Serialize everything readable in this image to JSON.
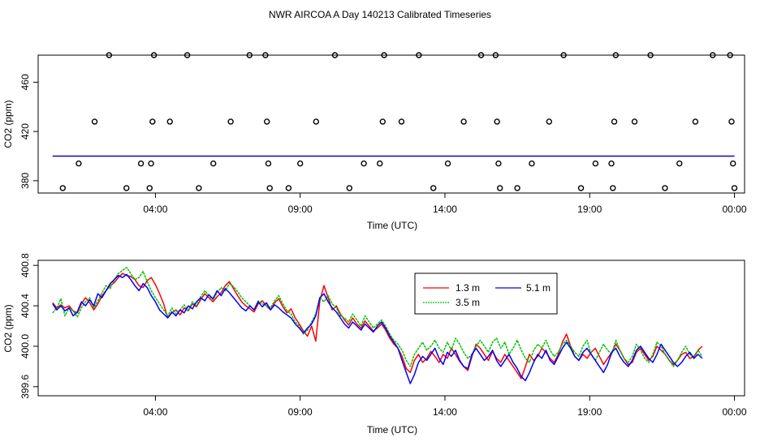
{
  "figure": {
    "title": "NWR AIRCOA A  Day 140213  Calibrated Timeseries"
  },
  "chart_data": [
    {
      "type": "scatter",
      "title": "NWR AIRCOA A  Day 140213  Calibrated Timeseries",
      "xlabel": "Time (UTC)",
      "ylabel": "CO2 (ppm)",
      "x_unit": "hours_utc",
      "xlim": [
        -0.05,
        24.35
      ],
      "ylim": [
        370,
        482
      ],
      "x_ticks": [
        {
          "value": 4,
          "label": "04:00"
        },
        {
          "value": 9,
          "label": "09:00"
        },
        {
          "value": 14,
          "label": "14:00"
        },
        {
          "value": 19,
          "label": "19:00"
        },
        {
          "value": 24,
          "label": "00:00"
        }
      ],
      "y_ticks": [
        {
          "value": 380,
          "label": "380"
        },
        {
          "value": 420,
          "label": "420"
        },
        {
          "value": 460,
          "label": "460"
        }
      ],
      "grid": false,
      "lines": [
        {
          "name": "1.3 m",
          "color": "#ff0000",
          "x": [
            0.45,
            24.0
          ],
          "y": [
            400.0,
            400.0
          ]
        },
        {
          "name": "3.5 m",
          "color": "#00c000",
          "x": [
            0.45,
            24.0
          ],
          "y": [
            400.0,
            400.0
          ]
        },
        {
          "name": "5.1 m",
          "color": "#0000ff",
          "x": [
            0.45,
            24.0
          ],
          "y": [
            400.0,
            400.0
          ]
        }
      ],
      "points": [
        {
          "x": 0.8,
          "y": 374
        },
        {
          "x": 1.35,
          "y": 394
        },
        {
          "x": 1.9,
          "y": 428
        },
        {
          "x": 2.4,
          "y": 482
        },
        {
          "x": 3.0,
          "y": 374
        },
        {
          "x": 3.5,
          "y": 394
        },
        {
          "x": 3.8,
          "y": 374
        },
        {
          "x": 3.85,
          "y": 394
        },
        {
          "x": 3.9,
          "y": 428
        },
        {
          "x": 3.95,
          "y": 482
        },
        {
          "x": 4.5,
          "y": 428
        },
        {
          "x": 5.1,
          "y": 482
        },
        {
          "x": 5.5,
          "y": 374
        },
        {
          "x": 6.0,
          "y": 394
        },
        {
          "x": 6.6,
          "y": 428
        },
        {
          "x": 7.25,
          "y": 482
        },
        {
          "x": 7.8,
          "y": 482
        },
        {
          "x": 7.85,
          "y": 428
        },
        {
          "x": 7.9,
          "y": 394
        },
        {
          "x": 7.95,
          "y": 374
        },
        {
          "x": 8.6,
          "y": 374
        },
        {
          "x": 9.0,
          "y": 394
        },
        {
          "x": 9.55,
          "y": 428
        },
        {
          "x": 10.2,
          "y": 482
        },
        {
          "x": 10.7,
          "y": 374
        },
        {
          "x": 11.2,
          "y": 394
        },
        {
          "x": 11.75,
          "y": 394
        },
        {
          "x": 11.85,
          "y": 428
        },
        {
          "x": 11.9,
          "y": 482
        },
        {
          "x": 12.5,
          "y": 428
        },
        {
          "x": 13.1,
          "y": 482
        },
        {
          "x": 13.6,
          "y": 374
        },
        {
          "x": 14.1,
          "y": 394
        },
        {
          "x": 14.65,
          "y": 428
        },
        {
          "x": 15.25,
          "y": 482
        },
        {
          "x": 15.75,
          "y": 482
        },
        {
          "x": 15.8,
          "y": 428
        },
        {
          "x": 15.85,
          "y": 394
        },
        {
          "x": 15.9,
          "y": 374
        },
        {
          "x": 16.5,
          "y": 374
        },
        {
          "x": 17.0,
          "y": 394
        },
        {
          "x": 17.6,
          "y": 428
        },
        {
          "x": 18.1,
          "y": 482
        },
        {
          "x": 18.7,
          "y": 374
        },
        {
          "x": 19.2,
          "y": 394
        },
        {
          "x": 19.75,
          "y": 394
        },
        {
          "x": 19.8,
          "y": 374
        },
        {
          "x": 19.85,
          "y": 428
        },
        {
          "x": 19.9,
          "y": 482
        },
        {
          "x": 20.55,
          "y": 428
        },
        {
          "x": 21.1,
          "y": 482
        },
        {
          "x": 21.6,
          "y": 374
        },
        {
          "x": 22.1,
          "y": 394
        },
        {
          "x": 22.65,
          "y": 428
        },
        {
          "x": 23.25,
          "y": 482
        },
        {
          "x": 23.85,
          "y": 482
        },
        {
          "x": 23.9,
          "y": 428
        },
        {
          "x": 23.95,
          "y": 394
        },
        {
          "x": 24.0,
          "y": 374
        }
      ]
    },
    {
      "type": "line",
      "xlabel": "Time (UTC)",
      "ylabel": "CO2 (ppm)",
      "x_unit": "hours_utc",
      "xlim": [
        -0.05,
        24.35
      ],
      "ylim": [
        399.51,
        400.85
      ],
      "x_ticks": [
        {
          "value": 4,
          "label": "04:00"
        },
        {
          "value": 9,
          "label": "09:00"
        },
        {
          "value": 14,
          "label": "14:00"
        },
        {
          "value": 19,
          "label": "19:00"
        },
        {
          "value": 24,
          "label": "00:00"
        }
      ],
      "y_ticks": [
        {
          "value": 399.6,
          "label": "399.6"
        },
        {
          "value": 400.0,
          "label": "400.0"
        },
        {
          "value": 400.4,
          "label": "400.4"
        },
        {
          "value": 400.8,
          "label": "400.8"
        }
      ],
      "grid": false,
      "legend": {
        "placement": "top-center",
        "columns": 2
      },
      "x_start": 0.45,
      "x_step": 0.142,
      "series": [
        {
          "name": "1.3 m",
          "color": "#ff0000",
          "values": [
            400.43,
            400.38,
            400.41,
            400.38,
            400.4,
            400.35,
            400.33,
            400.42,
            400.48,
            400.43,
            400.36,
            400.42,
            400.5,
            400.55,
            400.6,
            400.63,
            400.68,
            400.72,
            400.7,
            400.69,
            400.66,
            400.6,
            400.58,
            400.65,
            400.68,
            400.61,
            400.52,
            400.42,
            400.28,
            400.33,
            400.36,
            400.31,
            400.38,
            400.35,
            400.42,
            400.39,
            400.46,
            400.52,
            400.48,
            400.44,
            400.49,
            400.53,
            400.6,
            400.64,
            400.57,
            400.5,
            400.44,
            400.4,
            400.37,
            400.34,
            400.42,
            400.45,
            400.4,
            400.36,
            400.43,
            400.47,
            400.39,
            400.33,
            400.37,
            400.28,
            400.22,
            400.15,
            400.1,
            400.2,
            400.05,
            400.45,
            400.6,
            400.48,
            400.36,
            400.4,
            400.32,
            400.26,
            400.21,
            400.28,
            400.22,
            400.18,
            400.25,
            400.2,
            400.15,
            400.18,
            400.22,
            400.16,
            400.08,
            400.02,
            399.98,
            399.9,
            399.78,
            399.74,
            399.86,
            399.92,
            399.84,
            399.88,
            399.95,
            399.9,
            399.84,
            399.92,
            399.88,
            399.98,
            399.92,
            399.85,
            399.8,
            399.76,
            399.9,
            400.02,
            399.98,
            399.92,
            399.86,
            399.95,
            399.88,
            399.84,
            399.92,
            399.86,
            399.8,
            399.74,
            399.68,
            399.8,
            399.92,
            399.86,
            399.9,
            399.98,
            399.94,
            399.88,
            399.84,
            399.92,
            400.04,
            400.12,
            400.0,
            399.9,
            399.86,
            399.92,
            399.88,
            399.94,
            399.98,
            399.9,
            399.82,
            399.88,
            399.94,
            400.02,
            399.96,
            399.88,
            399.82,
            399.84,
            399.94,
            399.98,
            399.92,
            399.86,
            399.9,
            400.0,
            399.96,
            399.92,
            399.86,
            399.82,
            399.86,
            399.92,
            399.94,
            399.88,
            399.9,
            399.96,
            400.0
          ]
        },
        {
          "name": "3.5 m",
          "color": "#00c000",
          "values": [
            400.33,
            400.38,
            400.47,
            400.3,
            400.38,
            400.35,
            400.29,
            400.38,
            400.44,
            400.48,
            400.38,
            400.45,
            400.53,
            400.6,
            400.57,
            400.66,
            400.72,
            400.75,
            400.78,
            400.72,
            400.66,
            400.68,
            400.74,
            400.64,
            400.55,
            400.48,
            400.42,
            400.36,
            400.3,
            400.38,
            400.32,
            400.36,
            400.41,
            400.35,
            400.44,
            400.4,
            400.49,
            400.55,
            400.5,
            400.46,
            400.53,
            400.58,
            400.55,
            400.62,
            400.59,
            400.54,
            400.48,
            400.44,
            400.4,
            400.36,
            400.45,
            400.42,
            400.4,
            400.38,
            400.45,
            400.5,
            400.42,
            400.35,
            400.32,
            400.24,
            400.2,
            400.12,
            400.16,
            400.24,
            400.32,
            400.48,
            400.44,
            400.5,
            400.42,
            400.38,
            400.3,
            400.28,
            400.24,
            400.32,
            400.26,
            400.2,
            400.3,
            400.24,
            400.18,
            400.22,
            400.26,
            400.2,
            400.12,
            400.06,
            400.02,
            399.96,
            399.86,
            399.8,
            399.92,
            399.98,
            400.04,
            399.96,
            400.0,
            400.06,
            399.98,
            399.94,
            400.04,
            399.96,
            400.08,
            400.02,
            399.94,
            399.88,
            399.92,
            400.0,
            400.06,
            400.0,
            399.94,
            400.04,
            400.08,
            399.98,
            400.04,
            399.92,
            399.98,
            400.06,
            399.96,
            399.88,
            399.84,
            399.96,
            400.02,
            399.98,
            400.06,
            399.96,
            399.9,
            399.94,
            400.02,
            400.06,
            400.0,
            399.94,
            399.9,
            400.0,
            400.06,
            399.92,
            399.86,
            399.94,
            400.02,
            399.96,
            399.92,
            400.06,
            399.96,
            399.88,
            399.84,
            399.9,
            400.02,
            399.96,
            399.88,
            399.84,
            399.92,
            400.04,
            400.0,
            399.92,
            399.86,
            399.8,
            399.86,
            399.94,
            400.0,
            399.92,
            399.88,
            399.96,
            399.9
          ]
        },
        {
          "name": "5.1 m",
          "color": "#0000ff",
          "values": [
            400.42,
            400.36,
            400.4,
            400.35,
            400.38,
            400.3,
            400.34,
            400.44,
            400.4,
            400.46,
            400.4,
            400.52,
            400.48,
            400.55,
            400.62,
            400.66,
            400.7,
            400.68,
            400.71,
            400.66,
            400.6,
            400.55,
            400.62,
            400.58,
            400.5,
            400.44,
            400.36,
            400.32,
            400.28,
            400.34,
            400.3,
            400.36,
            400.33,
            400.4,
            400.37,
            400.44,
            400.48,
            400.45,
            400.51,
            400.47,
            400.55,
            400.5,
            400.57,
            400.53,
            400.48,
            400.43,
            400.38,
            400.35,
            400.4,
            400.36,
            400.44,
            400.39,
            400.43,
            400.36,
            400.41,
            400.38,
            400.34,
            400.31,
            400.28,
            400.22,
            400.18,
            400.13,
            400.18,
            400.22,
            400.3,
            400.48,
            400.52,
            400.44,
            400.38,
            400.34,
            400.28,
            400.22,
            400.18,
            400.24,
            400.2,
            400.16,
            400.22,
            400.18,
            400.14,
            400.2,
            400.24,
            400.18,
            400.1,
            400.04,
            399.98,
            399.86,
            399.74,
            399.63,
            399.72,
            399.84,
            399.9,
            399.86,
            399.92,
            399.98,
            399.88,
            399.82,
            399.94,
            399.9,
            399.96,
            399.86,
            399.8,
            399.78,
            399.92,
            399.98,
            399.92,
            399.86,
            399.9,
            399.96,
            399.86,
            399.8,
            399.86,
            399.92,
            399.84,
            399.78,
            399.7,
            399.66,
            399.74,
            399.84,
            399.92,
            399.88,
            399.96,
            399.86,
            399.82,
            399.9,
            399.98,
            400.04,
            399.98,
            399.9,
            399.86,
            399.94,
            399.98,
            399.92,
            399.86,
            399.8,
            399.74,
            399.82,
            399.94,
            399.98,
            399.9,
            399.84,
            399.8,
            399.86,
            399.96,
            400.0,
            399.94,
            399.88,
            399.84,
            399.92,
            400.02,
            399.96,
            399.9,
            399.84,
            399.8,
            399.84,
            399.9,
            399.94,
            399.88,
            399.92,
            399.88
          ]
        }
      ]
    }
  ]
}
